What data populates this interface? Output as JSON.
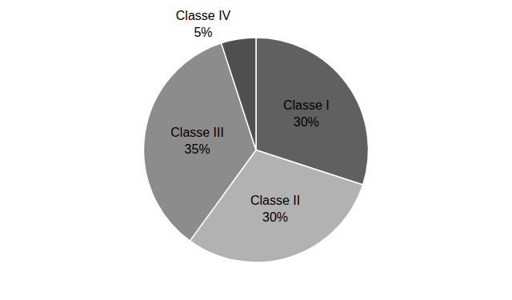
{
  "chart_data": {
    "type": "pie",
    "categories": [
      "Classe I",
      "Classe II",
      "Classe III",
      "Classe IV"
    ],
    "values": [
      30,
      30,
      35,
      5
    ],
    "value_labels": [
      "30%",
      "30%",
      "35%",
      "5%"
    ],
    "colors": [
      "#606060",
      "#b2b2b2",
      "#8c8c8c",
      "#4f4f4f"
    ],
    "data_labels": true
  }
}
